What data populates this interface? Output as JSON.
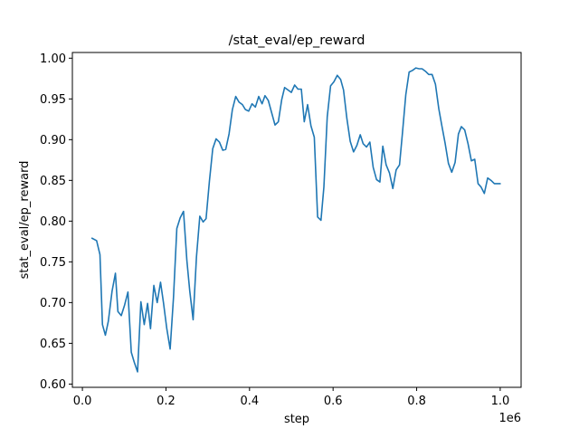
{
  "chart_data": {
    "type": "line",
    "title": "/stat_eval/ep_reward",
    "xlabel": "step",
    "ylabel": "stat_eval/ep_reward",
    "x_offset_label": "1e6",
    "xlim": [
      -0.024,
      1.05
    ],
    "ylim": [
      0.596,
      1.007
    ],
    "xticks": [
      0.0,
      0.2,
      0.4,
      0.6,
      0.8,
      1.0
    ],
    "xtick_labels": [
      "0.0",
      "0.2",
      "0.4",
      "0.6",
      "0.8",
      "1.0"
    ],
    "yticks": [
      0.6,
      0.65,
      0.7,
      0.75,
      0.8,
      0.85,
      0.9,
      0.95,
      1.0
    ],
    "ytick_labels": [
      "0.60",
      "0.65",
      "0.70",
      "0.75",
      "0.80",
      "0.85",
      "0.90",
      "0.95",
      "1.00"
    ],
    "grid": false,
    "color": "#1f77b4",
    "series": [
      {
        "x": [
          0.023,
          0.034,
          0.042,
          0.048,
          0.055,
          0.062,
          0.071,
          0.079,
          0.085,
          0.093,
          0.101,
          0.109,
          0.117,
          0.124,
          0.132,
          0.14,
          0.148,
          0.156,
          0.163,
          0.171,
          0.179,
          0.187,
          0.194,
          0.202,
          0.21,
          0.218,
          0.226,
          0.234,
          0.242,
          0.25,
          0.257,
          0.265,
          0.273,
          0.281,
          0.289,
          0.296,
          0.304,
          0.312,
          0.32,
          0.328,
          0.336,
          0.343,
          0.351,
          0.359,
          0.367,
          0.375,
          0.383,
          0.39,
          0.398,
          0.406,
          0.414,
          0.422,
          0.43,
          0.437,
          0.445,
          0.453,
          0.461,
          0.469,
          0.477,
          0.484,
          0.492,
          0.5,
          0.508,
          0.516,
          0.524,
          0.531,
          0.539,
          0.547,
          0.555,
          0.563,
          0.571,
          0.578,
          0.586,
          0.594,
          0.602,
          0.61,
          0.618,
          0.625,
          0.633,
          0.641,
          0.649,
          0.657,
          0.665,
          0.672,
          0.68,
          0.688,
          0.696,
          0.704,
          0.712,
          0.719,
          0.727,
          0.735,
          0.743,
          0.751,
          0.759,
          0.766,
          0.774,
          0.782,
          0.79,
          0.798,
          0.806,
          0.813,
          0.821,
          0.829,
          0.837,
          0.845,
          0.853,
          0.86,
          0.868,
          0.876,
          0.884,
          0.892,
          0.9,
          0.907,
          0.915,
          0.923,
          0.931,
          0.939,
          0.947,
          0.954,
          0.962,
          0.97,
          0.978,
          0.986,
          0.994,
          1.0
        ],
        "values": [
          0.779,
          0.776,
          0.759,
          0.673,
          0.66,
          0.677,
          0.714,
          0.736,
          0.689,
          0.684,
          0.697,
          0.713,
          0.639,
          0.627,
          0.615,
          0.701,
          0.673,
          0.699,
          0.668,
          0.721,
          0.7,
          0.725,
          0.7,
          0.668,
          0.643,
          0.706,
          0.791,
          0.804,
          0.812,
          0.752,
          0.714,
          0.679,
          0.756,
          0.806,
          0.799,
          0.803,
          0.849,
          0.889,
          0.901,
          0.897,
          0.887,
          0.888,
          0.907,
          0.937,
          0.953,
          0.946,
          0.943,
          0.937,
          0.935,
          0.944,
          0.94,
          0.953,
          0.944,
          0.954,
          0.948,
          0.933,
          0.918,
          0.922,
          0.949,
          0.964,
          0.961,
          0.958,
          0.967,
          0.962,
          0.962,
          0.922,
          0.943,
          0.917,
          0.903,
          0.805,
          0.801,
          0.842,
          0.928,
          0.966,
          0.971,
          0.979,
          0.974,
          0.961,
          0.926,
          0.898,
          0.885,
          0.893,
          0.906,
          0.895,
          0.891,
          0.897,
          0.866,
          0.851,
          0.848,
          0.892,
          0.869,
          0.859,
          0.84,
          0.863,
          0.869,
          0.908,
          0.955,
          0.983,
          0.985,
          0.988,
          0.987,
          0.987,
          0.984,
          0.98,
          0.98,
          0.968,
          0.938,
          0.918,
          0.896,
          0.871,
          0.86,
          0.872,
          0.907,
          0.916,
          0.912,
          0.895,
          0.874,
          0.876,
          0.846,
          0.842,
          0.834,
          0.853,
          0.85,
          0.846,
          0.846,
          0.846
        ]
      }
    ]
  }
}
